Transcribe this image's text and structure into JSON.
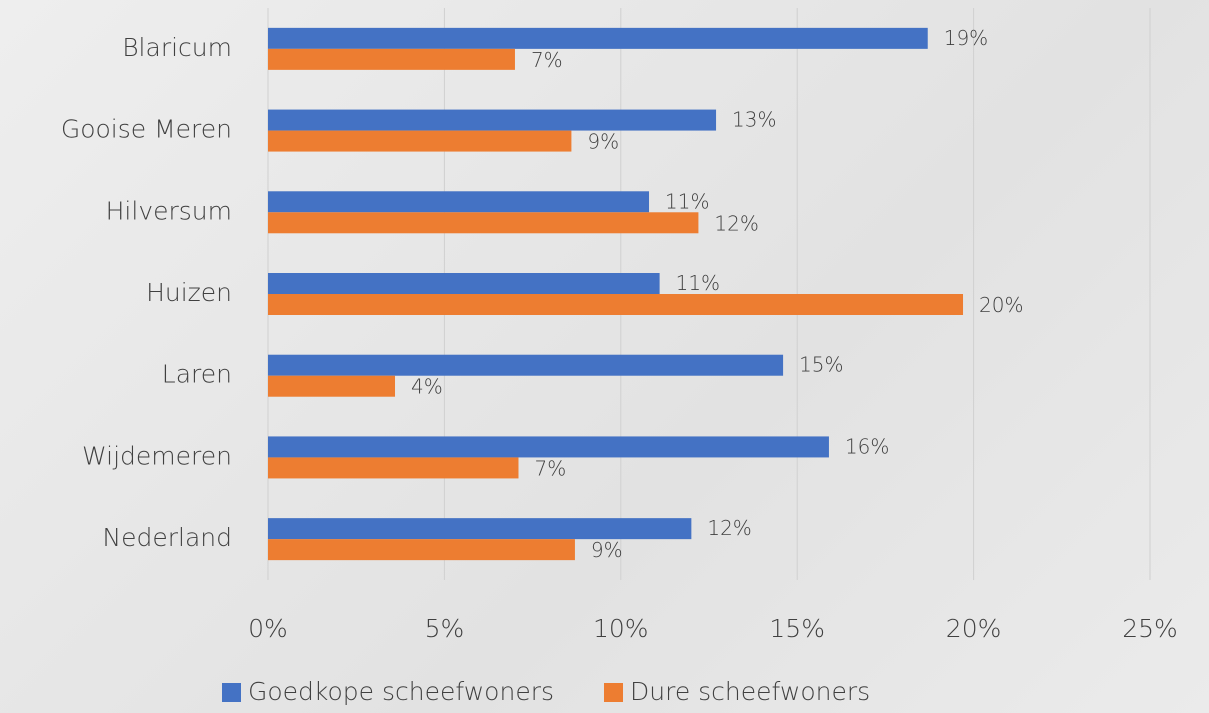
{
  "chart_data": {
    "type": "hbar",
    "categories": [
      "Blaricum",
      "Gooise Meren",
      "Hilversum",
      "Huizen",
      "Laren",
      "Wijdemeren",
      "Nederland"
    ],
    "series": [
      {
        "name": "Goedkope scheefwoners",
        "color": "#4472c4",
        "values": [
          18.7,
          12.7,
          10.8,
          11.1,
          14.6,
          15.9,
          12.0
        ],
        "value_labels": [
          "19%",
          "13%",
          "11%",
          "11%",
          "15%",
          "16%",
          "12%"
        ]
      },
      {
        "name": "Dure scheefwoners",
        "color": "#ed7d31",
        "values": [
          7.0,
          8.6,
          12.2,
          19.7,
          3.6,
          7.1,
          8.7
        ],
        "value_labels": [
          "7%",
          "9%",
          "12%",
          "20%",
          "4%",
          "7%",
          "9%"
        ]
      }
    ],
    "xlim": [
      0,
      25
    ],
    "xticks": [
      {
        "value": 0,
        "label": "0%"
      },
      {
        "value": 5,
        "label": "5%"
      },
      {
        "value": 10,
        "label": "10%"
      },
      {
        "value": 15,
        "label": "15%"
      },
      {
        "value": 20,
        "label": "20%"
      },
      {
        "value": 25,
        "label": "25%"
      }
    ],
    "grid": true,
    "legend": "bottom"
  }
}
